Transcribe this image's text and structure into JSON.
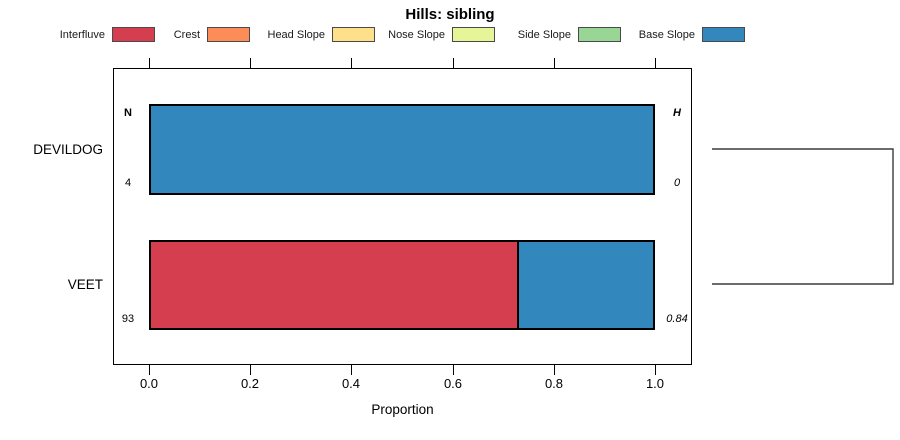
{
  "chart_data": {
    "type": "bar",
    "subtype": "horizontal-stacked-proportion",
    "title": "Hills: sibling",
    "xlabel": "Proportion",
    "xlim": [
      0,
      1
    ],
    "xticks": [
      0.0,
      0.2,
      0.4,
      0.6,
      0.8,
      1.0
    ],
    "xtick_labels": [
      "0.0",
      "0.2",
      "0.4",
      "0.6",
      "0.8",
      "1.0"
    ],
    "grid": false,
    "legend_position": "top",
    "classes": [
      "Interfluve",
      "Crest",
      "Head Slope",
      "Nose Slope",
      "Side Slope",
      "Base Slope"
    ],
    "class_colors": [
      "#D53E4F",
      "#FC8D59",
      "#FEE08B",
      "#E6F598",
      "#99D594",
      "#3288BD"
    ],
    "annotation_headers": {
      "left": "N",
      "right": "H"
    },
    "rows": [
      {
        "label": "DEVILDOG",
        "n": "4",
        "h": "0",
        "segments": [
          {
            "class": "Base Slope",
            "proportion": 1.0
          }
        ]
      },
      {
        "label": "VEET",
        "n": "93",
        "h": "0.84",
        "segments": [
          {
            "class": "Interfluve",
            "proportion": 0.73
          },
          {
            "class": "Base Slope",
            "proportion": 0.27
          }
        ]
      }
    ],
    "dendrogram": {
      "present": true,
      "joins": [
        "DEVILDOG",
        "VEET"
      ]
    }
  }
}
